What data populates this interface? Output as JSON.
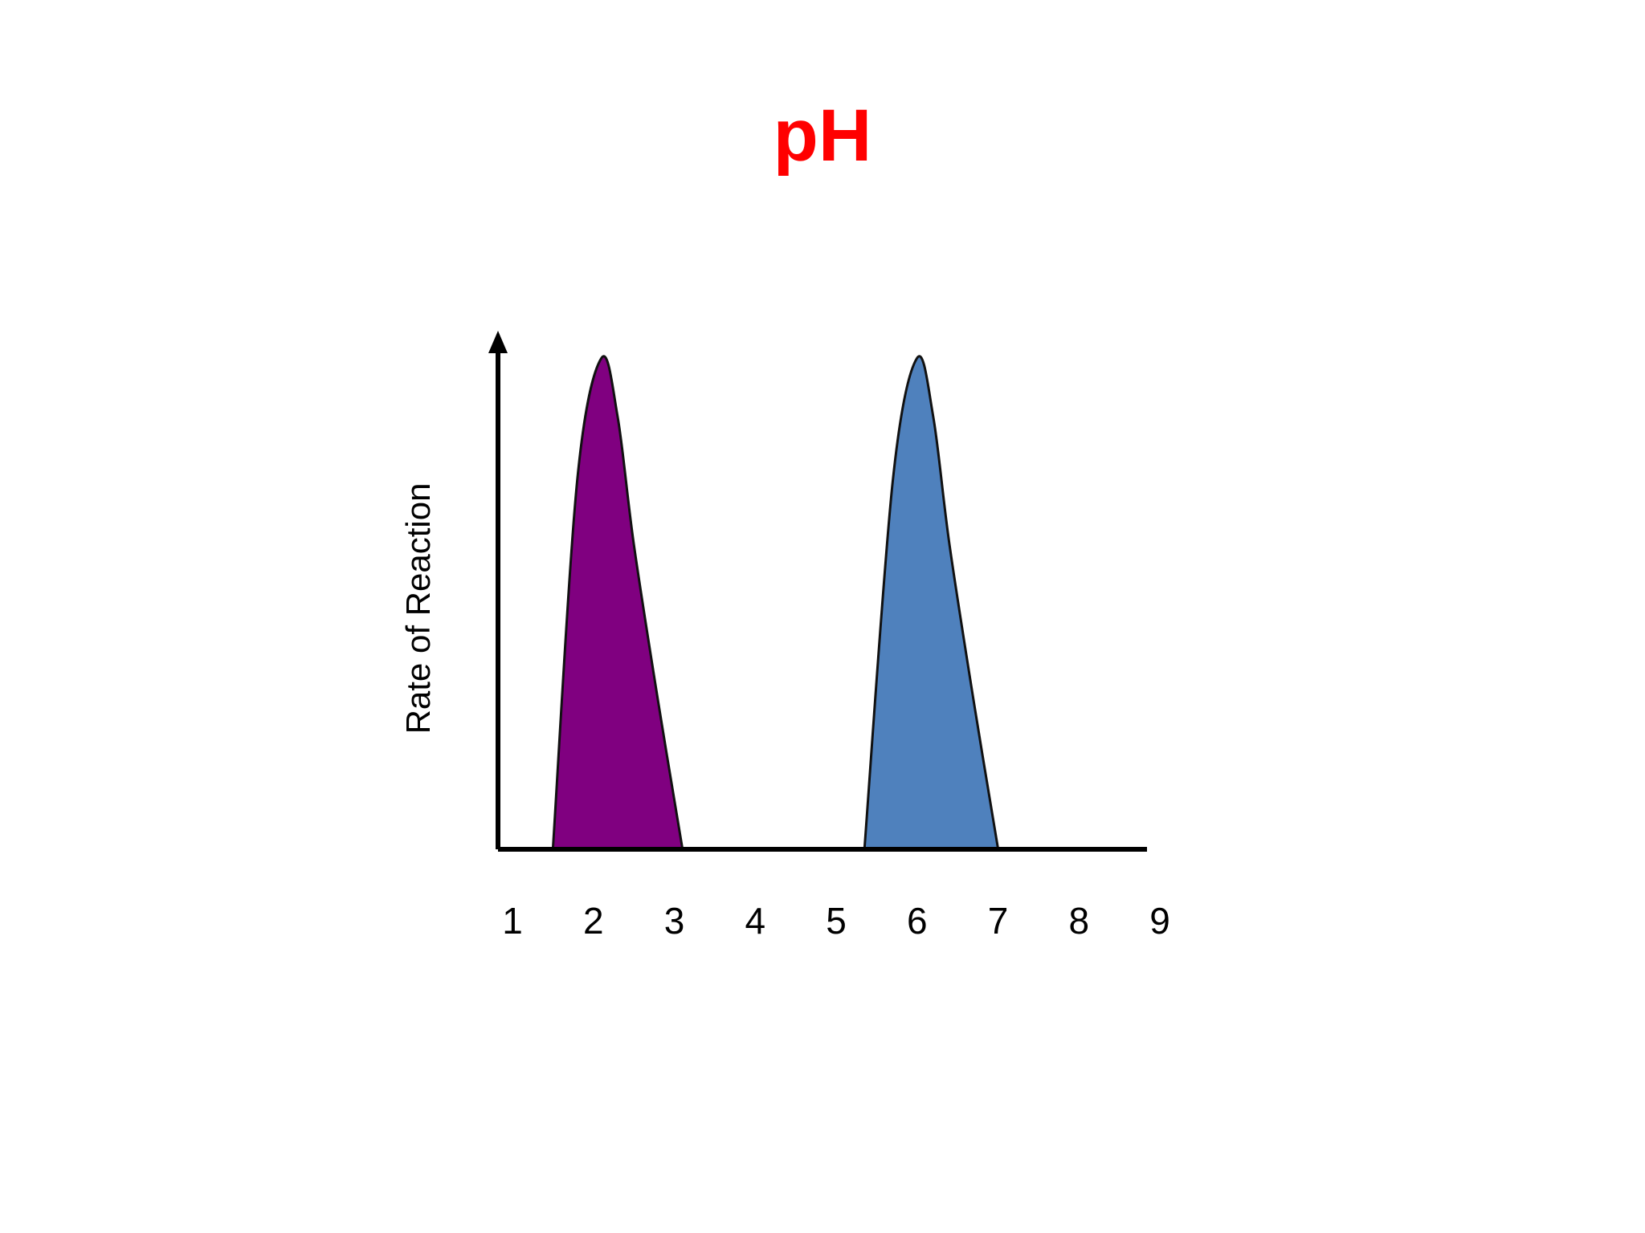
{
  "chart_data": {
    "type": "area",
    "title": "pH",
    "xlabel": "",
    "ylabel": "Rate of Reaction",
    "x_ticks": [
      "1",
      "2",
      "3",
      "4",
      "5",
      "6",
      "7",
      "8",
      "9"
    ],
    "xlim": [
      1,
      9
    ],
    "ylim": [
      0,
      1
    ],
    "grid": false,
    "legend": "none",
    "series": [
      {
        "color": "#800080",
        "x": [
          1.5,
          1.8,
          2.1,
          2.3,
          2.5,
          2.8,
          3.1
        ],
        "y": [
          0,
          0.75,
          1.0,
          0.88,
          0.62,
          0.3,
          0
        ]
      },
      {
        "color": "#4f81bd",
        "x": [
          5.35,
          5.7,
          6.0,
          6.2,
          6.4,
          6.7,
          7.0
        ],
        "y": [
          0,
          0.75,
          1.0,
          0.88,
          0.62,
          0.3,
          0
        ]
      }
    ],
    "axis_color": "#000000"
  }
}
